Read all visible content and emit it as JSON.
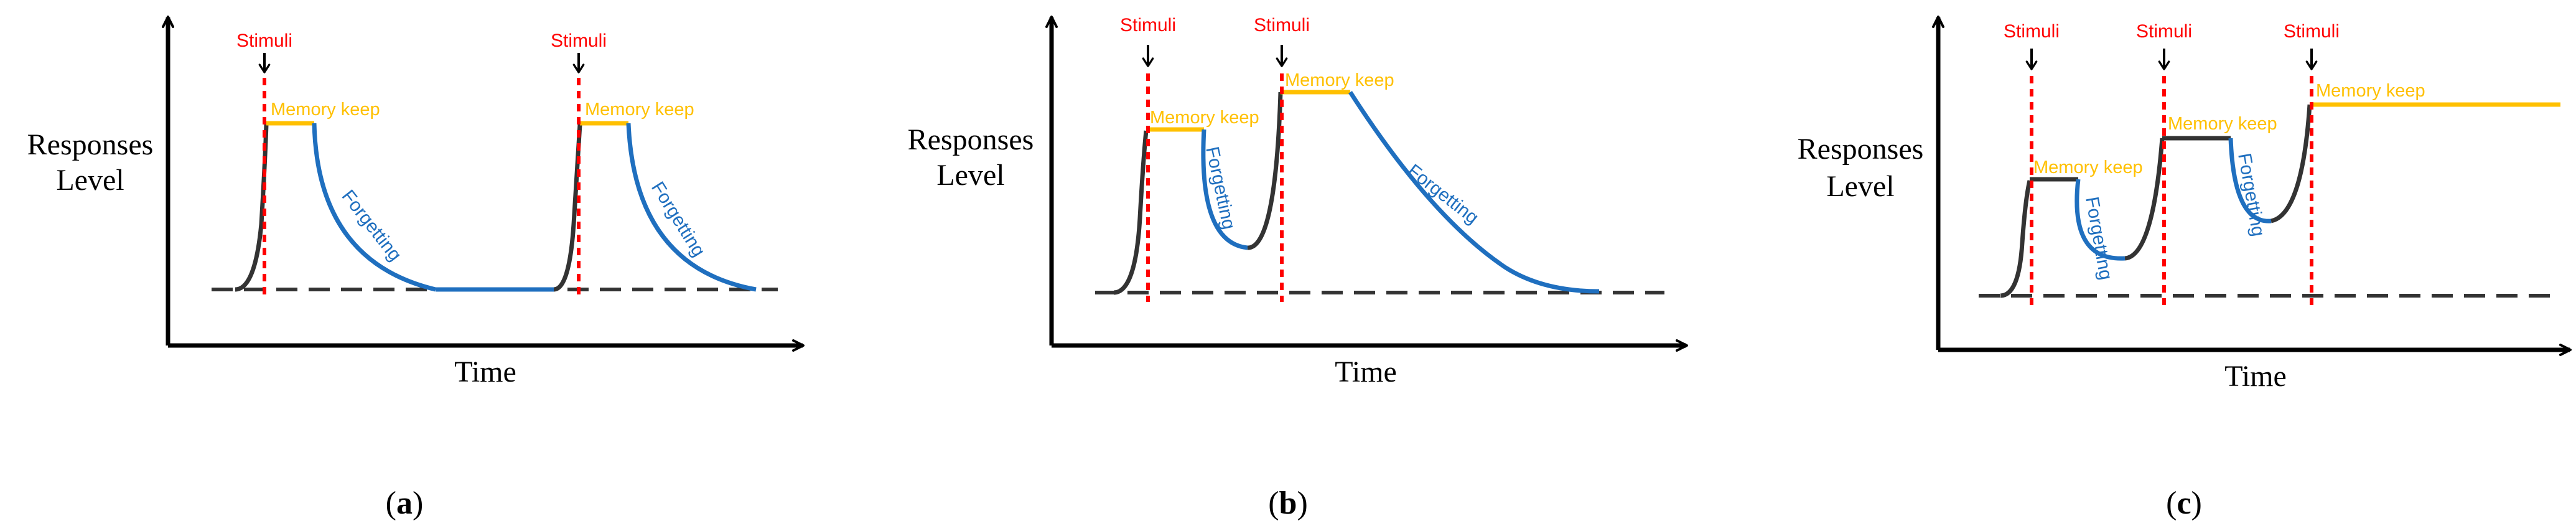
{
  "figure": {
    "colors": {
      "axis": "#000000",
      "baseline": "#333333",
      "rise": "#333333",
      "stimulus": "#ff0000",
      "memory": "#ffc000",
      "forgetting": "#1f6fbf"
    },
    "panels": [
      {
        "id": "a",
        "caption_open": "(",
        "caption_letter": "a",
        "caption_close": ")",
        "ylabel_line1": "Responses",
        "ylabel_line2": "Level",
        "xlabel": "Time",
        "stimuli": [
          "Stimuli",
          "Stimuli"
        ],
        "memory_labels": [
          "Memory keep",
          "Memory keep"
        ],
        "forgetting_labels": [
          "Forgetting",
          "Forgetting"
        ]
      },
      {
        "id": "b",
        "caption_open": "(",
        "caption_letter": "b",
        "caption_close": ")",
        "ylabel_line1": "Responses",
        "ylabel_line2": "Level",
        "xlabel": "Time",
        "stimuli": [
          "Stimuli",
          "Stimuli"
        ],
        "memory_labels": [
          "Memory keep",
          "Memory keep"
        ],
        "forgetting_labels": [
          "Forgetting",
          "Forgetting"
        ]
      },
      {
        "id": "c",
        "caption_open": "(",
        "caption_letter": "c",
        "caption_close": ")",
        "ylabel_line1": "Responses",
        "ylabel_line2": "Level",
        "xlabel": "Time",
        "stimuli": [
          "Stimuli",
          "Stimuli",
          "Stimuli"
        ],
        "memory_labels": [
          "Memory keep",
          "Memory keep",
          "Memory keep"
        ],
        "forgetting_labels": [
          "Forgetting",
          "Forgetting"
        ]
      }
    ]
  }
}
